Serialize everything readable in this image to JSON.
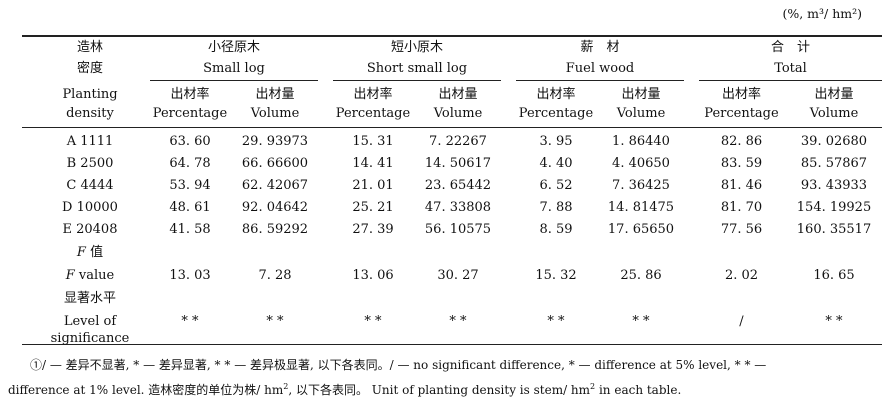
{
  "unit_note": "(%, m³/ hm²)",
  "header": {
    "density_cn": [
      "造林",
      "密度"
    ],
    "density_en": [
      "Planting",
      "density"
    ],
    "groups": [
      {
        "cn": "小径原木",
        "en": "Small log"
      },
      {
        "cn": "短小原木",
        "en": "Short small log"
      },
      {
        "cn": "薪　材",
        "en": "Fuel wood"
      },
      {
        "cn": "合　计",
        "en": "Total"
      }
    ],
    "sub_cn": [
      "出材率",
      "出材量"
    ],
    "sub_en": [
      "Percentage",
      "Volume"
    ]
  },
  "rows": [
    {
      "label": "A 1111",
      "values": [
        "63. 60",
        "29. 93973",
        "15. 31",
        "7. 22267",
        "3. 95",
        "1. 86440",
        "82. 86",
        "39. 02680"
      ]
    },
    {
      "label": "B 2500",
      "values": [
        "64. 78",
        "66. 66600",
        "14. 41",
        "14. 50617",
        "4. 40",
        "4. 40650",
        "83. 59",
        "85. 57867"
      ]
    },
    {
      "label": "C 4444",
      "values": [
        "53. 94",
        "62. 42067",
        "21. 01",
        "23. 65442",
        "6. 52",
        "7. 36425",
        "81. 46",
        "93. 43933"
      ]
    },
    {
      "label": "D 10000",
      "values": [
        "48. 61",
        "92. 04642",
        "25. 21",
        "47. 33808",
        "7. 88",
        "14. 81475",
        "81. 70",
        "154. 19925"
      ]
    },
    {
      "label": "E 20408",
      "values": [
        "41. 58",
        "86. 59292",
        "27. 39",
        "56. 10575",
        "8. 59",
        "17. 65650",
        "77. 56",
        "160. 35517"
      ]
    }
  ],
  "f_row": {
    "label_cn": "值",
    "label_en": "value",
    "label_sym": "F",
    "values": [
      "13. 03",
      "7. 28",
      "13. 06",
      "30. 27",
      "15. 32",
      "25. 86",
      "2. 02",
      "16. 65"
    ]
  },
  "sig_row": {
    "label_cn": "显著水平",
    "label_en": [
      "Level of",
      "significance"
    ],
    "values": [
      "* *",
      "* *",
      "* *",
      "* *",
      "* *",
      "* *",
      "/",
      "* *"
    ]
  },
  "footnote": {
    "line1": "①/ — 差异不显著, * — 差异显著, * * — 差异极显著, 以下各表同。/ — no significant difference, * — difference at 5% level, * * —",
    "line2_a": "difference at 1% level. 造林密度的单位为株/ hm",
    "line2_b": ", 以下各表同。 Unit of planting density is stem/ hm",
    "line2_c": " in each table.",
    "sup": "2"
  }
}
